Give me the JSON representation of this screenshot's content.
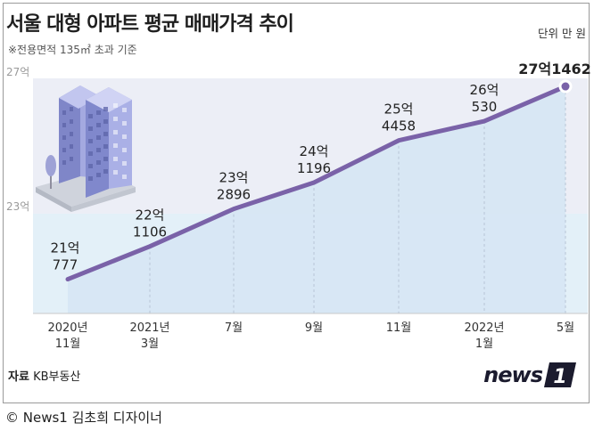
{
  "title": "서울 대형 아파트 평균 매매가격 추이",
  "subtitle": "※전용면적 135㎡ 초과 기준",
  "unit": "단위 만 원",
  "source_label": "자료",
  "source_value": "KB부동산",
  "logo_text": "news",
  "logo_digit": "1",
  "credit": "© News1 김초희 디자이너",
  "colors": {
    "line": "#7a62a8",
    "band_top": "#edf0f7",
    "band_bottom": "#e4f1f8",
    "fill": "#dbe9f6"
  },
  "chart_data": {
    "type": "line",
    "title": "서울 대형 아파트 평균 매매가격 추이",
    "ylabel": "단위 만 원",
    "y_ticks": [
      "27억",
      "23억"
    ],
    "ylim": [
      200000,
      274000
    ],
    "categories": [
      [
        "2020년",
        "11월"
      ],
      [
        "2021년",
        "3월"
      ],
      [
        "7월"
      ],
      [
        "9월"
      ],
      [
        "11월"
      ],
      [
        "2022년",
        "1월"
      ],
      [
        "5월"
      ]
    ],
    "values": [
      210777,
      221106,
      232896,
      241196,
      254458,
      260530,
      271462
    ],
    "data_labels": [
      [
        "21억",
        "777"
      ],
      [
        "22억",
        "1106"
      ],
      [
        "23억",
        "2896"
      ],
      [
        "24억",
        "1196"
      ],
      [
        "25억",
        "4458"
      ],
      [
        "26억",
        "530"
      ],
      [
        "27억1462"
      ]
    ]
  }
}
